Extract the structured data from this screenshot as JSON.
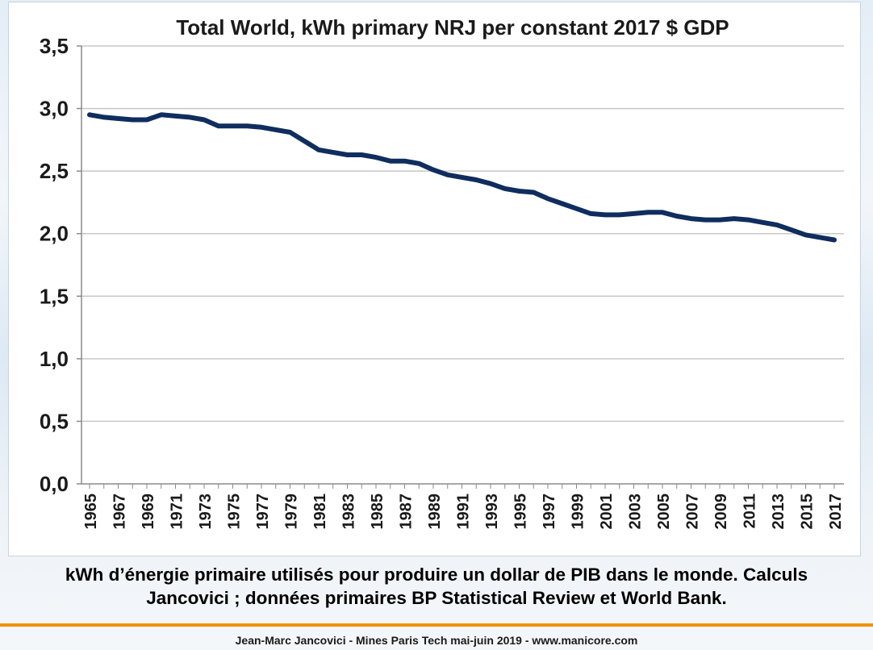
{
  "chart_data": {
    "type": "line",
    "title": "Total World, kWh primary NRJ per constant 2017 $ GDP",
    "xlabel": "",
    "ylabel": "",
    "ylim": [
      0,
      3.5
    ],
    "y_ticks": [
      "0,0",
      "0,5",
      "1,0",
      "1,5",
      "2,0",
      "2,5",
      "3,0",
      "3,5"
    ],
    "x_tick_labels": [
      "1965",
      "1967",
      "1969",
      "1971",
      "1973",
      "1975",
      "1977",
      "1979",
      "1981",
      "1983",
      "1985",
      "1987",
      "1989",
      "1991",
      "1993",
      "1995",
      "1997",
      "1999",
      "2001",
      "2003",
      "2005",
      "2007",
      "2009",
      "2011",
      "2013",
      "2015",
      "2017"
    ],
    "grid": true,
    "legend": "none",
    "series_color": "#0f2d5e",
    "x": [
      1965,
      1966,
      1967,
      1968,
      1969,
      1970,
      1971,
      1972,
      1973,
      1974,
      1975,
      1976,
      1977,
      1978,
      1979,
      1980,
      1981,
      1982,
      1983,
      1984,
      1985,
      1986,
      1987,
      1988,
      1989,
      1990,
      1991,
      1992,
      1993,
      1994,
      1995,
      1996,
      1997,
      1998,
      1999,
      2000,
      2001,
      2002,
      2003,
      2004,
      2005,
      2006,
      2007,
      2008,
      2009,
      2010,
      2011,
      2012,
      2013,
      2014,
      2015,
      2016,
      2017
    ],
    "series": [
      {
        "values": [
          2.95,
          2.93,
          2.92,
          2.91,
          2.91,
          2.95,
          2.94,
          2.93,
          2.91,
          2.86,
          2.86,
          2.86,
          2.85,
          2.83,
          2.81,
          2.74,
          2.67,
          2.65,
          2.63,
          2.63,
          2.61,
          2.58,
          2.58,
          2.56,
          2.51,
          2.47,
          2.45,
          2.43,
          2.4,
          2.36,
          2.34,
          2.33,
          2.28,
          2.24,
          2.2,
          2.16,
          2.15,
          2.15,
          2.16,
          2.17,
          2.17,
          2.14,
          2.12,
          2.11,
          2.11,
          2.12,
          2.11,
          2.09,
          2.07,
          2.03,
          1.99,
          1.97,
          1.95
        ]
      }
    ]
  },
  "caption": {
    "line1": "kWh d’énergie primaire utilisés pour produire un dollar de PIB dans le monde. Calculs",
    "line2": "Jancovici ; données primaires BP Statistical Review et World Bank."
  },
  "footer": "Jean-Marc Jancovici - Mines Paris Tech mai-juin 2019 - www.manicore.com"
}
